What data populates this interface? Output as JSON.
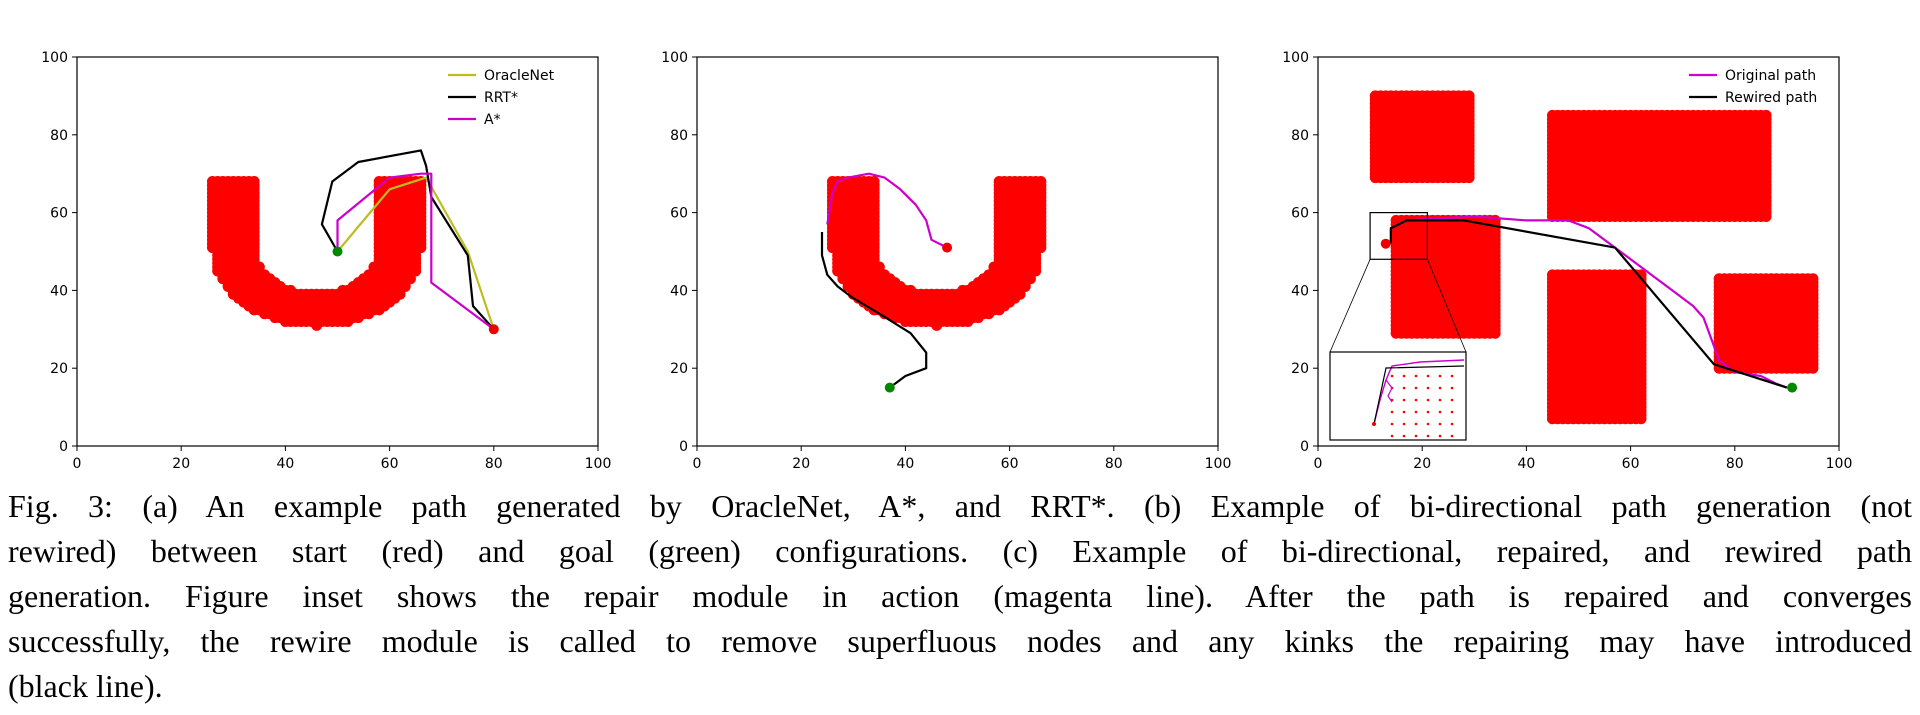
{
  "figure": {
    "caption_lines": [
      "Fig. 3: (a) An example path generated by OracleNet, A*, and RRT*. (b) Example of bi-directional path generation (not",
      "rewired) between start (red) and goal (green) configurations. (c) Example of bi-directional, repaired, and rewired path",
      "generation. Figure inset shows the repair module in action (magenta line). After the path is repaired and converges",
      "successfully, the rewire module is called to remove superfluous nodes and any kinks the repairing may have introduced",
      "(black line)."
    ]
  },
  "colors": {
    "obstacle": "#ff0000",
    "oraclenet": "#bcbd22",
    "rrt": "#000000",
    "astar": "#cc00cc",
    "original": "#cc00cc",
    "rewired": "#000000",
    "start": "#ee0000",
    "goal": "#008800"
  },
  "chart_data": [
    {
      "type": "line",
      "panel": "a",
      "xlim": [
        0,
        100
      ],
      "ylim": [
        0,
        100
      ],
      "xticks": [
        "0",
        "20",
        "40",
        "60",
        "80",
        "100"
      ],
      "yticks": [
        "0",
        "20",
        "40",
        "60",
        "80",
        "100"
      ],
      "legend": {
        "placement": "top-right",
        "entries": [
          "OracleNet",
          "RRT*",
          "A*"
        ]
      },
      "obstacle": "U-shaped block of obstacle points",
      "series": [
        {
          "name": "OracleNet",
          "x": [
            50,
            60,
            67,
            75,
            80
          ],
          "y": [
            50,
            66,
            69,
            50,
            30
          ]
        },
        {
          "name": "RRT*",
          "x": [
            50,
            47,
            49,
            54,
            66,
            67,
            68,
            75,
            76,
            80
          ],
          "y": [
            50,
            57,
            68,
            73,
            76,
            72,
            64,
            49,
            36,
            30
          ]
        },
        {
          "name": "A*",
          "x": [
            50,
            50,
            60,
            66,
            68,
            68,
            80
          ],
          "y": [
            50,
            58,
            69,
            70,
            70,
            42,
            30
          ]
        }
      ],
      "points": [
        {
          "role": "start",
          "x": 80,
          "y": 30
        },
        {
          "role": "goal",
          "x": 50,
          "y": 50
        }
      ]
    },
    {
      "type": "line",
      "panel": "b",
      "xlim": [
        0,
        100
      ],
      "ylim": [
        0,
        100
      ],
      "xticks": [
        "0",
        "20",
        "40",
        "60",
        "80",
        "100"
      ],
      "yticks": [
        "0",
        "20",
        "40",
        "60",
        "80",
        "100"
      ],
      "obstacle": "U-shaped block of obstacle points",
      "series": [
        {
          "color": "magenta",
          "x": [
            48,
            45,
            44,
            42,
            39,
            36,
            33,
            29,
            27,
            26,
            25
          ],
          "y": [
            51,
            53,
            58,
            62,
            66,
            69,
            70,
            69,
            68,
            65,
            57
          ]
        },
        {
          "color": "black",
          "x": [
            37,
            40,
            44,
            44,
            41,
            35,
            30,
            27,
            25,
            24,
            24
          ],
          "y": [
            15,
            18,
            20,
            24,
            29,
            34,
            38,
            41,
            44,
            49,
            55
          ]
        }
      ],
      "points": [
        {
          "role": "start",
          "x": 48,
          "y": 51
        },
        {
          "role": "goal",
          "x": 37,
          "y": 15
        }
      ]
    },
    {
      "type": "line",
      "panel": "c",
      "xlim": [
        0,
        100
      ],
      "ylim": [
        0,
        100
      ],
      "xticks": [
        "0",
        "20",
        "40",
        "60",
        "80",
        "100"
      ],
      "yticks": [
        "0",
        "20",
        "40",
        "60",
        "80",
        "100"
      ],
      "legend": {
        "placement": "top-right",
        "entries": [
          "Original path",
          "Rewired path"
        ]
      },
      "obstacles": [
        {
          "x": [
            11,
            29
          ],
          "y": [
            69,
            90
          ]
        },
        {
          "x": [
            15,
            34
          ],
          "y": [
            29,
            58
          ]
        },
        {
          "x": [
            45,
            86
          ],
          "y": [
            59,
            85
          ]
        },
        {
          "x": [
            45,
            62
          ],
          "y": [
            7,
            44
          ]
        },
        {
          "x": [
            77,
            95
          ],
          "y": [
            20,
            43
          ]
        }
      ],
      "series": [
        {
          "name": "Original path",
          "x": [
            14,
            14,
            17,
            30,
            40,
            48,
            52,
            57,
            63,
            68,
            72,
            74,
            77,
            80,
            85,
            88,
            90
          ],
          "y": [
            52,
            56,
            58,
            59,
            58,
            58,
            56,
            51,
            45,
            40,
            36,
            33,
            22,
            19,
            18,
            16,
            15
          ]
        },
        {
          "name": "Rewired path",
          "x": [
            14,
            14,
            17,
            28,
            57,
            76,
            90
          ],
          "y": [
            52,
            56,
            58,
            58,
            51,
            21,
            15
          ]
        }
      ],
      "points": [
        {
          "role": "start",
          "x": 13,
          "y": 52
        },
        {
          "role": "goal",
          "x": 91,
          "y": 15
        }
      ]
    }
  ]
}
